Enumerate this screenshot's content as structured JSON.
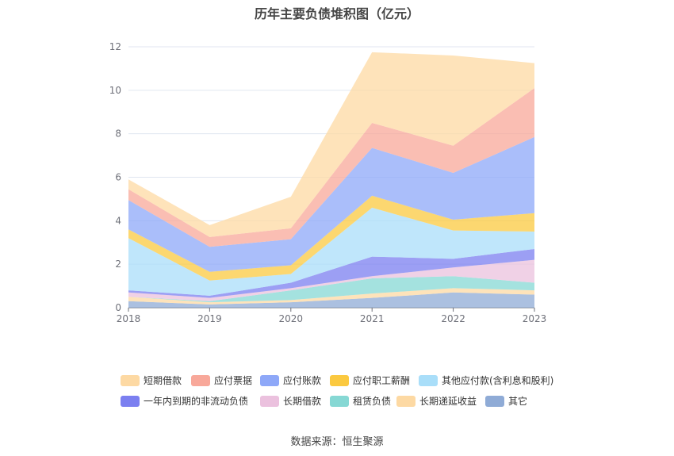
{
  "chart_data": {
    "type": "area",
    "stacked": true,
    "title": "历年主要负债堆积图（亿元）",
    "x": [
      "2018",
      "2019",
      "2020",
      "2021",
      "2022",
      "2023"
    ],
    "y_ticks": [
      "0",
      "2",
      "4",
      "6",
      "8",
      "10",
      "12"
    ],
    "ylim": [
      0,
      12
    ],
    "grid": true,
    "legend_position": "bottom",
    "series": [
      {
        "name": "其它",
        "color": "#8fabd6",
        "values": [
          0.3,
          0.15,
          0.25,
          0.45,
          0.7,
          0.6
        ]
      },
      {
        "name": "长期递延收益",
        "color": "#fdd9a3",
        "values": [
          0.2,
          0.1,
          0.1,
          0.2,
          0.2,
          0.2
        ]
      },
      {
        "name": "租赁负债",
        "color": "#86d8d4",
        "values": [
          0.0,
          0.05,
          0.45,
          0.7,
          0.55,
          0.35
        ]
      },
      {
        "name": "长期借款",
        "color": "#ebc1de",
        "values": [
          0.2,
          0.15,
          0.1,
          0.1,
          0.4,
          1.05
        ]
      },
      {
        "name": "一年内到期的非流动负债",
        "color": "#7b7ff0",
        "values": [
          0.1,
          0.1,
          0.25,
          0.9,
          0.4,
          0.5
        ]
      },
      {
        "name": "其他应付款(含利息和股利)",
        "color": "#a9def9",
        "values": [
          2.4,
          0.7,
          0.4,
          2.25,
          1.3,
          0.8
        ]
      },
      {
        "name": "应付职工薪酬",
        "color": "#fbc940",
        "values": [
          0.4,
          0.4,
          0.4,
          0.55,
          0.5,
          0.85
        ]
      },
      {
        "name": "应付账款",
        "color": "#8ea8f8",
        "values": [
          1.35,
          1.15,
          1.2,
          2.2,
          2.15,
          3.5
        ]
      },
      {
        "name": "应付票据",
        "color": "#f8a89a",
        "values": [
          0.5,
          0.45,
          0.5,
          1.15,
          1.25,
          2.25
        ]
      },
      {
        "name": "短期借款",
        "color": "#fdd9a3",
        "values": [
          0.45,
          0.55,
          1.45,
          3.25,
          4.15,
          1.15
        ]
      }
    ]
  },
  "legend_items": [
    {
      "label": "短期借款",
      "color": "#fdd9a3"
    },
    {
      "label": "应付票据",
      "color": "#f8a89a"
    },
    {
      "label": "应付账款",
      "color": "#8ea8f8"
    },
    {
      "label": "应付职工薪酬",
      "color": "#fbc940"
    },
    {
      "label": "其他应付款(含利息和股利)",
      "color": "#a9def9"
    },
    {
      "label": "一年内到期的非流动负债",
      "color": "#7b7ff0"
    },
    {
      "label": "长期借款",
      "color": "#ebc1de"
    },
    {
      "label": "租赁负债",
      "color": "#86d8d4"
    },
    {
      "label": "长期递延收益",
      "color": "#fdd9a3"
    },
    {
      "label": "其它",
      "color": "#8fabd6"
    }
  ],
  "source": "数据来源：恒生聚源"
}
